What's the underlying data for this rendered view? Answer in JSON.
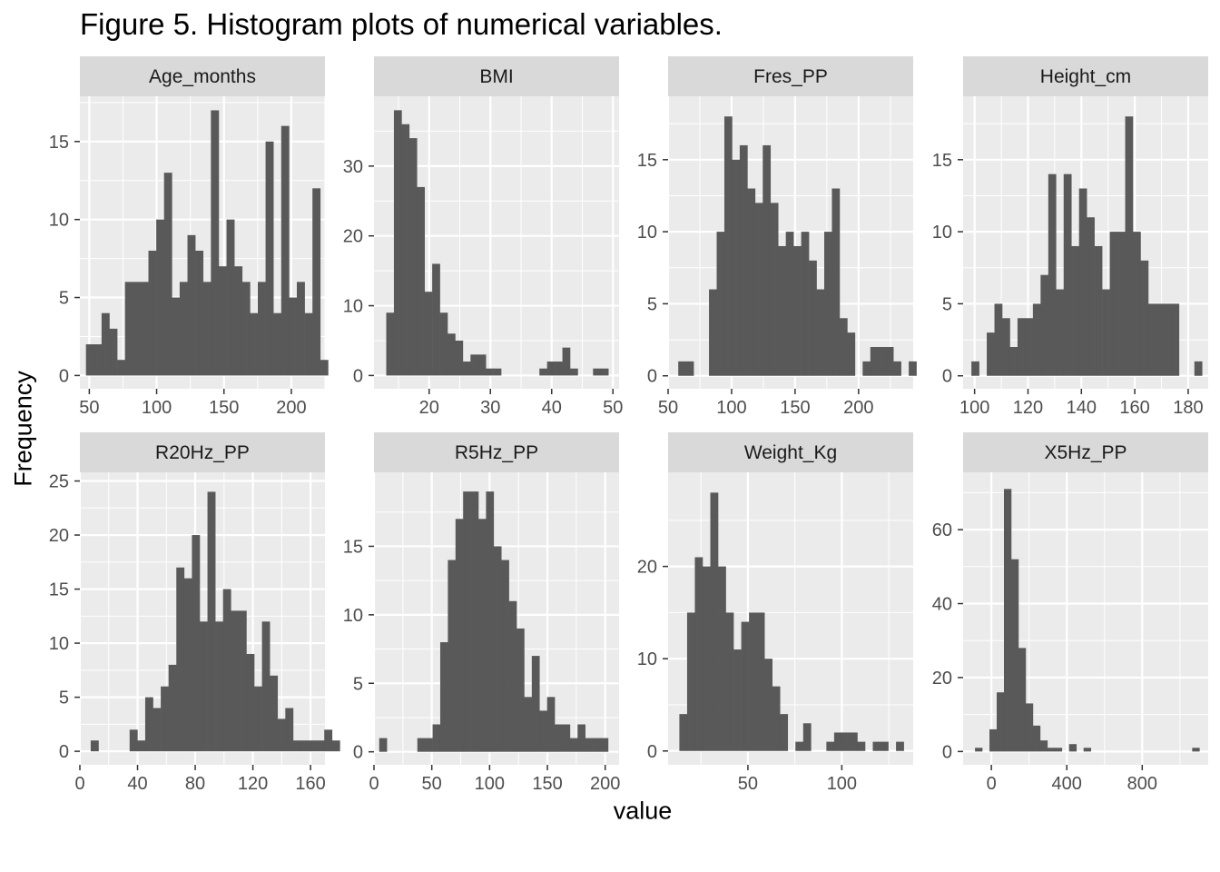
{
  "figure": {
    "title": "Figure 5. Histogram plots of numerical variables.",
    "xlabel": "value",
    "ylabel": "Frequency"
  },
  "colors": {
    "panel_bg": "#ebebeb",
    "grid": "#ffffff",
    "bar": "#595959",
    "strip_bg": "#d9d9d9",
    "tick_text": "#4d4d4d"
  },
  "chart_data": [
    {
      "type": "bar",
      "title": "Age_months",
      "xlim": [
        43,
        225
      ],
      "ylim": [
        -0.85,
        17.9
      ],
      "xticks": [
        50,
        100,
        150,
        200
      ],
      "yticks": [
        0,
        5,
        10,
        15
      ],
      "bin_start": 47.5,
      "bin_width": 5.8,
      "counts": [
        2,
        2,
        4,
        3,
        1,
        6,
        6,
        6,
        8,
        10,
        13,
        5,
        6,
        9,
        8,
        6,
        17,
        7,
        10,
        7,
        6,
        4,
        6,
        15,
        4,
        16,
        5,
        6,
        4,
        12,
        1
      ]
    },
    {
      "type": "bar",
      "title": "BMI",
      "xlim": [
        11,
        51
      ],
      "ylim": [
        -1.9,
        40
      ],
      "xticks": [
        20,
        30,
        40,
        50
      ],
      "yticks": [
        0,
        10,
        20,
        30
      ],
      "bin_start": 13,
      "bin_width": 1.25,
      "counts": [
        9,
        38,
        36,
        34,
        27,
        12,
        16,
        9,
        6,
        5,
        2,
        3,
        3,
        1,
        1,
        0,
        0,
        0,
        0,
        0,
        1,
        2,
        2,
        4,
        1,
        0,
        0,
        1,
        1
      ]
    },
    {
      "type": "bar",
      "title": "Fres_PP",
      "xlim": [
        50,
        243
      ],
      "ylim": [
        -0.9,
        19.4
      ],
      "xticks": [
        50,
        100,
        150,
        200
      ],
      "yticks": [
        0,
        5,
        10,
        15
      ],
      "bin_start": 58,
      "bin_width": 6.05,
      "counts": [
        1,
        1,
        0,
        0,
        6,
        10,
        18,
        15,
        16,
        13,
        12,
        16,
        12,
        9,
        10,
        9,
        10,
        8,
        6,
        10,
        13,
        4,
        3,
        0,
        1,
        2,
        2,
        2,
        1,
        0,
        1
      ]
    },
    {
      "type": "bar",
      "title": "Height_cm",
      "xlim": [
        95.7,
        187.5
      ],
      "ylim": [
        -0.9,
        19.4
      ],
      "xticks": [
        100,
        120,
        140,
        160,
        180
      ],
      "yticks": [
        0,
        5,
        10,
        15
      ],
      "bin_start": 98.8,
      "bin_width": 2.88,
      "counts": [
        1,
        0,
        3,
        5,
        4,
        2,
        4,
        4,
        5,
        7,
        14,
        6,
        14,
        9,
        13,
        11,
        9,
        6,
        10,
        10,
        18,
        10,
        8,
        5,
        5,
        5,
        5,
        0,
        0,
        1
      ]
    },
    {
      "type": "bar",
      "title": "R20Hz_PP",
      "xlim": [
        0,
        170
      ],
      "ylim": [
        -1.25,
        25.8
      ],
      "xticks": [
        0,
        40,
        80,
        120,
        160
      ],
      "yticks": [
        0,
        5,
        10,
        15,
        20,
        25
      ],
      "bin_start": 7.5,
      "bin_width": 5.4,
      "counts": [
        1,
        0,
        0,
        0,
        0,
        2,
        1,
        5,
        4,
        6,
        8,
        17,
        16,
        20,
        12,
        24,
        12,
        15,
        13,
        13,
        9,
        6,
        12,
        7,
        3,
        4,
        1,
        1,
        1,
        1,
        2,
        1
      ]
    },
    {
      "type": "bar",
      "title": "R5Hz_PP",
      "xlim": [
        0,
        212
      ],
      "ylim": [
        -0.95,
        20.4
      ],
      "xticks": [
        0,
        50,
        100,
        150,
        200
      ],
      "yticks": [
        0,
        5,
        10,
        15
      ],
      "bin_start": 4.5,
      "bin_width": 6.6,
      "counts": [
        1,
        0,
        0,
        0,
        0,
        1,
        1,
        2,
        8,
        14,
        17,
        19,
        19,
        17,
        19,
        15,
        14,
        11,
        9,
        4,
        7,
        3,
        4,
        2,
        2,
        1,
        2,
        1,
        1,
        1
      ]
    },
    {
      "type": "bar",
      "title": "Weight_Kg",
      "xlim": [
        7.5,
        138
      ],
      "ylim": [
        -1.5,
        30.2
      ],
      "xticks": [
        50,
        100
      ],
      "yticks": [
        0,
        10,
        20
      ],
      "bin_start": 13.5,
      "bin_width": 4.12,
      "counts": [
        4,
        15,
        21,
        20,
        28,
        20,
        15,
        11,
        14,
        15,
        15,
        10,
        7,
        4,
        0,
        1,
        3,
        0,
        0,
        1,
        2,
        2,
        2,
        1,
        0,
        1,
        1,
        0,
        1
      ]
    },
    {
      "type": "bar",
      "title": "X5Hz_PP",
      "xlim": [
        -150,
        1150
      ],
      "ylim": [
        -3.6,
        75.5
      ],
      "xticks": [
        0,
        400,
        800
      ],
      "yticks": [
        0,
        20,
        40,
        60
      ],
      "bin_start": -87,
      "bin_width": 38.4,
      "counts": [
        1,
        0,
        6,
        16,
        71,
        52,
        28,
        13,
        7,
        3,
        1,
        1,
        0,
        2,
        0,
        1,
        0,
        0,
        0,
        0,
        0,
        0,
        0,
        0,
        0,
        0,
        0,
        0,
        0,
        0,
        1
      ]
    }
  ]
}
